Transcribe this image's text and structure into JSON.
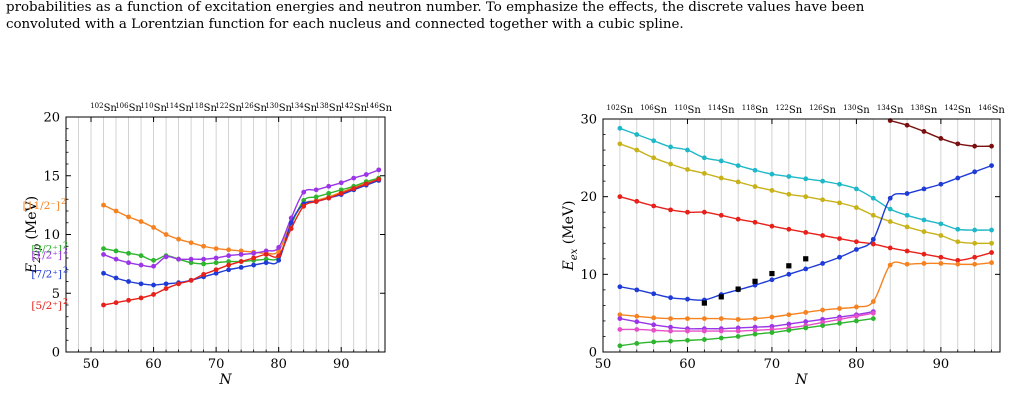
{
  "caption": {
    "line1": "probabilities as a function of excitation energies and neutron number. To emphasize the effects, the discrete values have been",
    "line2": "convoluted with a Lorentzian function for each nucleus and connected together with a cubic spline."
  },
  "chart_data": [
    {
      "type": "line",
      "title": "",
      "xlabel": "N",
      "ylabel": "E2νp (MeV)",
      "xlim": [
        46,
        97
      ],
      "ylim": [
        0,
        20
      ],
      "xticks": [
        50,
        60,
        70,
        80,
        90
      ],
      "yticks": [
        0,
        5,
        10,
        15,
        20
      ],
      "top_axis_labels": [
        {
          "N": 52,
          "A": "102",
          "el": "Sn"
        },
        {
          "N": 56,
          "A": "106",
          "el": "Sn"
        },
        {
          "N": 60,
          "A": "110",
          "el": "Sn"
        },
        {
          "N": 64,
          "A": "114",
          "el": "Sn"
        },
        {
          "N": 68,
          "A": "118",
          "el": "Sn"
        },
        {
          "N": 72,
          "A": "122",
          "el": "Sn"
        },
        {
          "N": 76,
          "A": "126",
          "el": "Sn"
        },
        {
          "N": 80,
          "A": "130",
          "el": "Sn"
        },
        {
          "N": 84,
          "A": "134",
          "el": "Sn"
        },
        {
          "N": 88,
          "A": "138",
          "el": "Sn"
        },
        {
          "N": 92,
          "A": "142",
          "el": "Sn"
        },
        {
          "N": 96,
          "A": "146",
          "el": "Sn"
        }
      ],
      "grid_x": "vertical lines at every even N",
      "series": [
        {
          "name": "[11/2⁻]²",
          "color": "#f58220",
          "x": [
            52,
            54,
            56,
            58,
            60,
            62,
            64,
            66,
            68,
            70,
            72,
            74,
            76,
            78,
            80,
            82,
            84,
            86,
            88,
            90,
            92,
            94,
            96
          ],
          "y": [
            12.5,
            12.0,
            11.5,
            11.1,
            10.6,
            10.0,
            9.6,
            9.3,
            9.0,
            8.8,
            8.7,
            8.6,
            8.5,
            8.4,
            8.6,
            11.0,
            12.6,
            12.9,
            13.2,
            13.6,
            14.0,
            14.4,
            14.7
          ]
        },
        {
          "name": "[3/2⁺]²",
          "color": "#2db52d",
          "x": [
            52,
            54,
            56,
            58,
            60,
            62,
            64,
            66,
            68,
            70,
            72,
            74,
            76,
            78,
            80,
            82,
            84,
            86,
            88,
            90,
            92,
            94,
            96
          ],
          "y": [
            8.8,
            8.6,
            8.4,
            8.2,
            7.8,
            8.2,
            7.9,
            7.6,
            7.5,
            7.6,
            7.7,
            7.7,
            7.8,
            7.9,
            8.1,
            10.8,
            12.9,
            13.2,
            13.5,
            13.8,
            14.1,
            14.5,
            14.8
          ]
        },
        {
          "name": "[1/2⁺]²",
          "color": "#9b35e8",
          "x": [
            52,
            54,
            56,
            58,
            60,
            62,
            64,
            66,
            68,
            70,
            72,
            74,
            76,
            78,
            80,
            82,
            84,
            86,
            88,
            90,
            92,
            94,
            96
          ],
          "y": [
            8.3,
            7.9,
            7.6,
            7.4,
            7.3,
            8.1,
            7.9,
            7.9,
            7.9,
            8.0,
            8.2,
            8.3,
            8.4,
            8.6,
            8.9,
            11.4,
            13.6,
            13.8,
            14.1,
            14.4,
            14.8,
            15.1,
            15.5
          ]
        },
        {
          "name": "[7/2⁺]²",
          "color": "#1f3bd6",
          "x": [
            52,
            54,
            56,
            58,
            60,
            62,
            64,
            66,
            68,
            70,
            72,
            74,
            76,
            78,
            80,
            82,
            84,
            86,
            88,
            90,
            92,
            94,
            96
          ],
          "y": [
            6.7,
            6.3,
            6.0,
            5.8,
            5.7,
            5.8,
            5.9,
            6.1,
            6.4,
            6.7,
            7.0,
            7.2,
            7.4,
            7.6,
            7.8,
            11.0,
            12.6,
            12.8,
            13.1,
            13.4,
            13.8,
            14.2,
            14.6
          ]
        },
        {
          "name": "[5/2⁺]²",
          "color": "#e8201a",
          "x": [
            52,
            54,
            56,
            58,
            60,
            62,
            64,
            66,
            68,
            70,
            72,
            74,
            76,
            78,
            80,
            82,
            84,
            86,
            88,
            90,
            92,
            94,
            96
          ],
          "y": [
            4.0,
            4.2,
            4.4,
            4.6,
            4.9,
            5.4,
            5.8,
            6.1,
            6.6,
            7.0,
            7.4,
            7.7,
            8.0,
            8.3,
            8.2,
            10.5,
            12.4,
            12.8,
            13.1,
            13.5,
            13.9,
            14.3,
            14.7
          ]
        }
      ]
    },
    {
      "type": "line",
      "title": "",
      "xlabel": "N",
      "ylabel": "Eex (MeV)",
      "xlim": [
        50,
        97
      ],
      "ylim": [
        0,
        30
      ],
      "xticks": [
        50,
        60,
        70,
        80,
        90
      ],
      "yticks": [
        0,
        10,
        20,
        30
      ],
      "top_axis_labels": [
        {
          "N": 52,
          "A": "102",
          "el": "Sn"
        },
        {
          "N": 56,
          "A": "106",
          "el": "Sn"
        },
        {
          "N": 60,
          "A": "110",
          "el": "Sn"
        },
        {
          "N": 64,
          "A": "114",
          "el": "Sn"
        },
        {
          "N": 68,
          "A": "118",
          "el": "Sn"
        },
        {
          "N": 72,
          "A": "122",
          "el": "Sn"
        },
        {
          "N": 76,
          "A": "126",
          "el": "Sn"
        },
        {
          "N": 80,
          "A": "130",
          "el": "Sn"
        },
        {
          "N": 84,
          "A": "134",
          "el": "Sn"
        },
        {
          "N": 88,
          "A": "138",
          "el": "Sn"
        },
        {
          "N": 92,
          "A": "142",
          "el": "Sn"
        },
        {
          "N": 96,
          "A": "146",
          "el": "Sn"
        }
      ],
      "grid_x": "vertical lines at every even N",
      "series": [
        {
          "color": "#1fb8c8",
          "x": [
            52,
            54,
            56,
            58,
            60,
            62,
            64,
            66,
            68,
            70,
            72,
            74,
            76,
            78,
            80,
            82,
            84,
            86,
            88,
            90,
            92,
            94,
            96
          ],
          "y": [
            28.8,
            28.0,
            27.2,
            26.4,
            26.0,
            25.0,
            24.6,
            24.0,
            23.4,
            22.9,
            22.6,
            22.3,
            22.0,
            21.6,
            21.0,
            19.8,
            18.4,
            17.6,
            17.0,
            16.5,
            15.8,
            15.7,
            15.7
          ]
        },
        {
          "color": "#c8b21a",
          "x": [
            52,
            54,
            56,
            58,
            60,
            62,
            64,
            66,
            68,
            70,
            72,
            74,
            76,
            78,
            80,
            82,
            84,
            86,
            88,
            90,
            92,
            94,
            96
          ],
          "y": [
            26.8,
            26.0,
            25.0,
            24.2,
            23.5,
            23.0,
            22.4,
            21.9,
            21.3,
            20.8,
            20.3,
            20.0,
            19.6,
            19.2,
            18.6,
            17.6,
            16.8,
            16.1,
            15.5,
            15.0,
            14.2,
            14.0,
            14.0
          ]
        },
        {
          "color": "#e8201a",
          "x": [
            52,
            54,
            56,
            58,
            60,
            62,
            64,
            66,
            68,
            70,
            72,
            74,
            76,
            78,
            80,
            82,
            84,
            86,
            88,
            90,
            92,
            94,
            96
          ],
          "y": [
            20.0,
            19.4,
            18.8,
            18.3,
            18.0,
            18.0,
            17.6,
            17.1,
            16.7,
            16.2,
            15.8,
            15.4,
            15.0,
            14.6,
            14.2,
            13.9,
            13.4,
            13.0,
            12.6,
            12.2,
            11.8,
            12.2,
            12.8
          ]
        },
        {
          "color": "#1f3bd6",
          "x": [
            52,
            54,
            56,
            58,
            60,
            62,
            64,
            66,
            68,
            70,
            72,
            74,
            76,
            78,
            80,
            82,
            84,
            86,
            88,
            90,
            92,
            94,
            96
          ],
          "y": [
            8.4,
            8.0,
            7.5,
            7.0,
            6.8,
            6.7,
            7.4,
            8.0,
            8.6,
            9.3,
            10.0,
            10.7,
            11.4,
            12.2,
            13.2,
            14.5,
            19.8,
            20.4,
            21.0,
            21.6,
            22.4,
            23.2,
            24.0
          ]
        },
        {
          "color": "#7a1010",
          "x": [
            84,
            86,
            88,
            90,
            92,
            94,
            96
          ],
          "y": [
            29.8,
            29.2,
            28.4,
            27.5,
            26.8,
            26.5,
            26.5
          ]
        },
        {
          "color": "#f58220",
          "x": [
            52,
            54,
            56,
            58,
            60,
            62,
            64,
            66,
            68,
            70,
            72,
            74,
            76,
            78,
            80,
            82,
            84,
            86,
            88,
            90,
            92,
            94,
            96
          ],
          "y": [
            4.8,
            4.6,
            4.4,
            4.3,
            4.3,
            4.3,
            4.3,
            4.2,
            4.3,
            4.5,
            4.8,
            5.1,
            5.4,
            5.6,
            5.8,
            6.5,
            11.2,
            11.3,
            11.4,
            11.4,
            11.3,
            11.3,
            11.5
          ]
        },
        {
          "color": "#9b35e8",
          "x": [
            52,
            54,
            56,
            58,
            60,
            62,
            64,
            66,
            68,
            70,
            72,
            74,
            76,
            78,
            80,
            82
          ],
          "y": [
            4.3,
            3.9,
            3.5,
            3.2,
            3.0,
            3.0,
            3.0,
            3.1,
            3.2,
            3.3,
            3.6,
            3.9,
            4.2,
            4.5,
            4.8,
            5.2
          ]
        },
        {
          "color": "#e64fc8",
          "x": [
            52,
            54,
            56,
            58,
            60,
            62,
            64,
            66,
            68,
            70,
            72,
            74,
            76,
            78,
            80,
            82
          ],
          "y": [
            2.9,
            2.9,
            2.8,
            2.7,
            2.7,
            2.7,
            2.7,
            2.7,
            2.8,
            2.9,
            3.1,
            3.4,
            3.8,
            4.2,
            4.6,
            5.0
          ]
        },
        {
          "color": "#2db52d",
          "x": [
            52,
            54,
            56,
            58,
            60,
            62,
            64,
            66,
            68,
            70,
            72,
            74,
            76,
            78,
            80,
            82
          ],
          "y": [
            0.8,
            1.1,
            1.3,
            1.4,
            1.5,
            1.6,
            1.8,
            2.0,
            2.3,
            2.5,
            2.8,
            3.1,
            3.4,
            3.7,
            4.0,
            4.3
          ]
        }
      ],
      "markers": {
        "color": "#000000",
        "shape": "square",
        "x": [
          62,
          64,
          66,
          68,
          70,
          72,
          74
        ],
        "y": [
          6.3,
          7.1,
          8.1,
          9.1,
          10.1,
          11.1,
          12.0
        ]
      }
    }
  ]
}
